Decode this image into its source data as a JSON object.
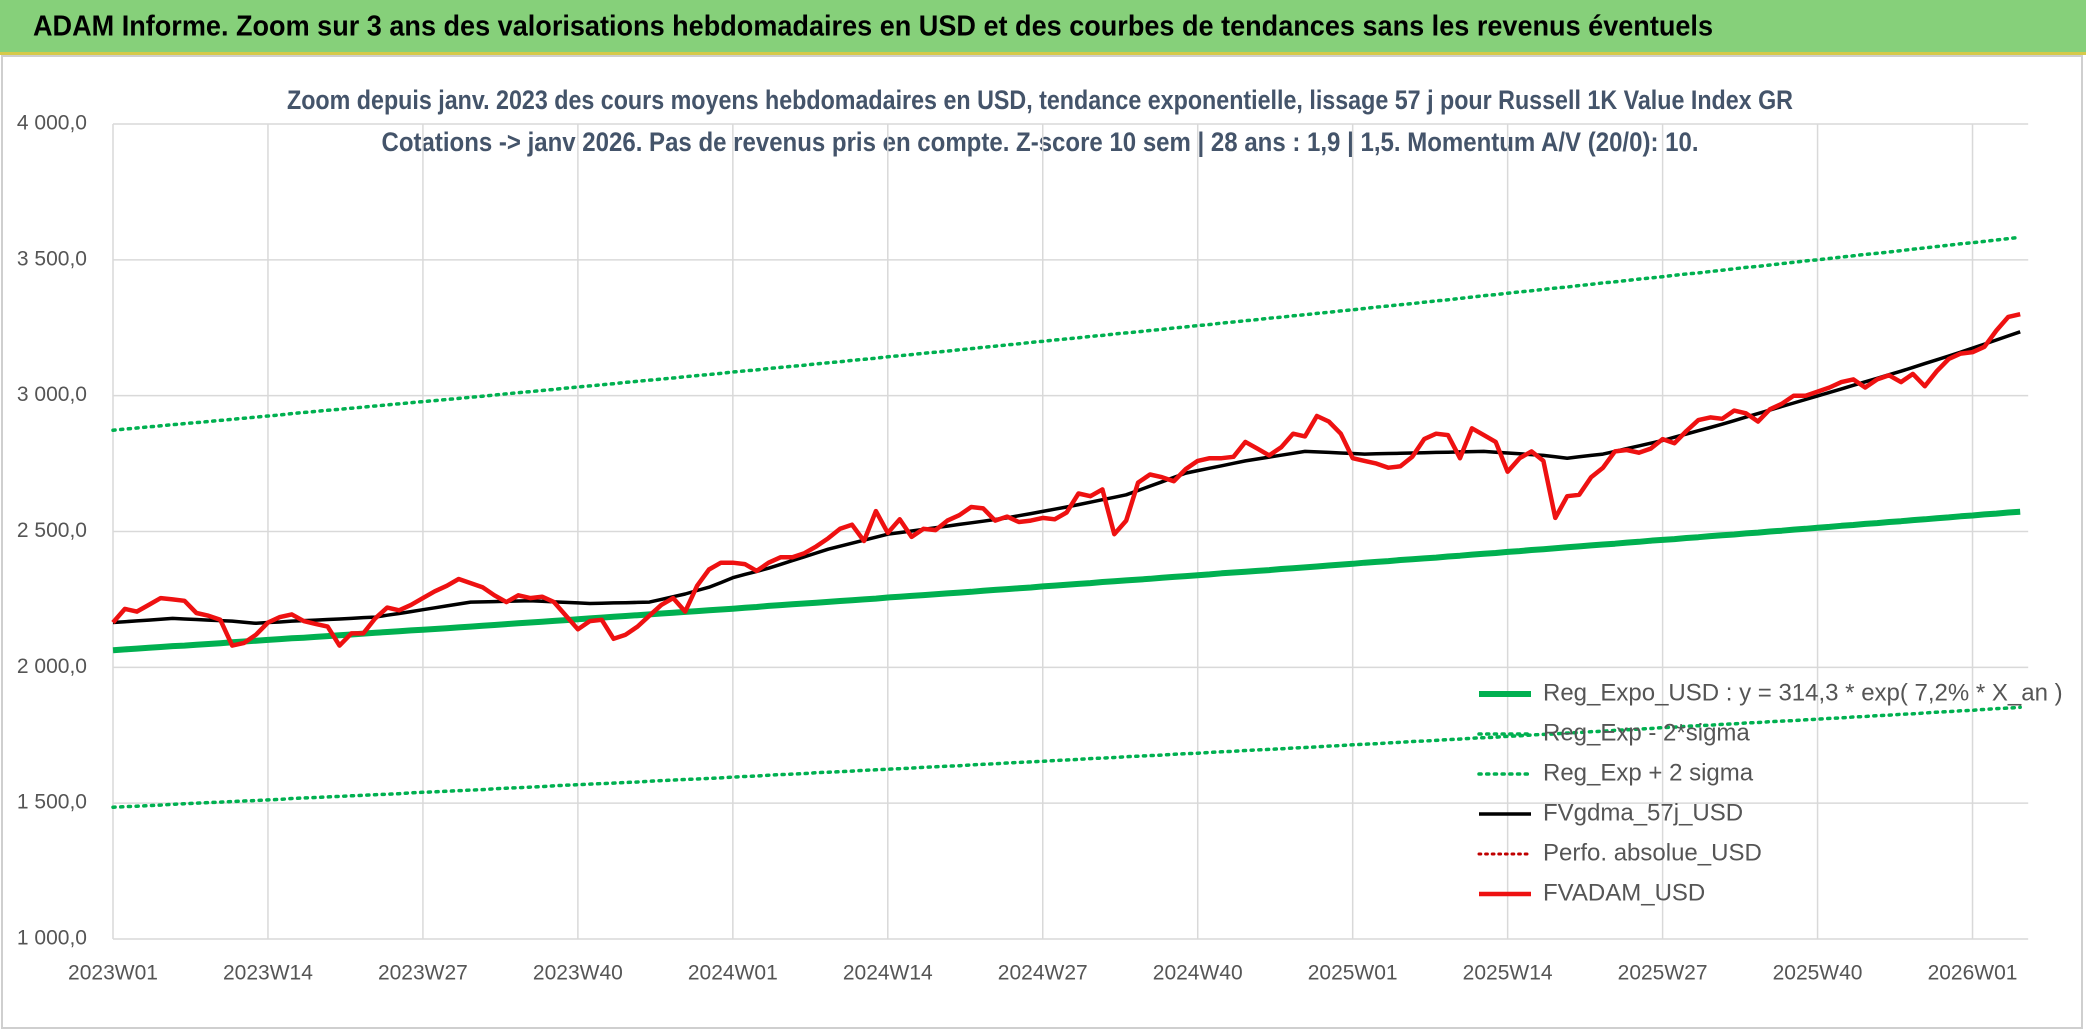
{
  "header": {
    "title": "ADAM Informe. Zoom sur 3 ans des valorisations hebdomadaires en USD et des courbes de tendances sans les revenus éventuels"
  },
  "chart_data": {
    "type": "line",
    "title": "Zoom depuis janv. 2023 des cours moyens hebdomadaires en USD, tendance exponentielle, lissage 57 j pour Russell 1K Value Index GR",
    "subtitle": "Cotations -> janv 2026. Pas de revenus pris en compte. Z-score 10 sem | 28 ans : 1,9 | 1,5. Momentum A/V (20/0): 10.",
    "categories": [
      "2023W01",
      null,
      null,
      null,
      null,
      null,
      null,
      null,
      null,
      null,
      null,
      null,
      null,
      "2023W14",
      null,
      null,
      null,
      null,
      null,
      null,
      null,
      null,
      null,
      null,
      null,
      null,
      "2023W27",
      null,
      null,
      null,
      null,
      null,
      null,
      null,
      null,
      null,
      null,
      null,
      null,
      "2023W40",
      null,
      null,
      null,
      null,
      null,
      null,
      null,
      null,
      null,
      null,
      null,
      null,
      "2024W01",
      null,
      null,
      null,
      null,
      null,
      null,
      null,
      null,
      null,
      null,
      null,
      null,
      "2024W14",
      null,
      null,
      null,
      null,
      null,
      null,
      null,
      null,
      null,
      null,
      null,
      null,
      "2024W27",
      null,
      null,
      null,
      null,
      null,
      null,
      null,
      null,
      null,
      null,
      null,
      null,
      "2024W40",
      null,
      null,
      null,
      null,
      null,
      null,
      null,
      null,
      null,
      null,
      null,
      null,
      "2025W01",
      null,
      null,
      null,
      null,
      null,
      null,
      null,
      null,
      null,
      null,
      null,
      null,
      "2025W14",
      null,
      null,
      null,
      null,
      null,
      null,
      null,
      null,
      null,
      null,
      null,
      null,
      "2025W27",
      null,
      null,
      null,
      null,
      null,
      null,
      null,
      null,
      null,
      null,
      null,
      null,
      "2025W40",
      null,
      null,
      null,
      null,
      null,
      null,
      null,
      null,
      null,
      null,
      null,
      null,
      "2026W01",
      null,
      null,
      null,
      null
    ],
    "ylim": [
      1000,
      4000
    ],
    "yticks": [
      {
        "value": 1000,
        "label": "1 000,0"
      },
      {
        "value": 1500,
        "label": "1 500,0"
      },
      {
        "value": 2000,
        "label": "2 000,0"
      },
      {
        "value": 2500,
        "label": "2 500,0"
      },
      {
        "value": 3000,
        "label": "3 000,0"
      },
      {
        "value": 3500,
        "label": "3 500,0"
      },
      {
        "value": 4000,
        "label": "4 000,0"
      }
    ],
    "grid": true,
    "legend": "lower-right",
    "series": [
      {
        "name": "Reg_Expo_USD : y = 314,3 * exp( 7,2% *  X_an )",
        "color": "#00b050",
        "width": 6,
        "dash": "solid",
        "values": [
          2063,
          2066,
          2069,
          2072,
          2075,
          2078,
          2080,
          2083,
          2086,
          2089,
          2092,
          2095,
          2098,
          2101,
          2104,
          2107,
          2109,
          2112,
          2115,
          2118,
          2121,
          2124,
          2127,
          2130,
          2133,
          2136,
          2138,
          2141,
          2144,
          2147,
          2150,
          2153,
          2156,
          2159,
          2162,
          2165,
          2168,
          2171,
          2174,
          2177,
          2180,
          2183,
          2186,
          2189,
          2192,
          2195,
          2198,
          2201,
          2204,
          2207,
          2210,
          2213,
          2216,
          2219,
          2222,
          2226,
          2229,
          2232,
          2235,
          2238,
          2241,
          2244,
          2247,
          2250,
          2253,
          2257,
          2260,
          2263,
          2266,
          2269,
          2272,
          2275,
          2278,
          2282,
          2285,
          2288,
          2291,
          2294,
          2298,
          2301,
          2304,
          2307,
          2310,
          2314,
          2317,
          2320,
          2323,
          2326,
          2330,
          2333,
          2336,
          2339,
          2342,
          2346,
          2349,
          2352,
          2355,
          2358,
          2362,
          2365,
          2368,
          2371,
          2375,
          2378,
          2381,
          2385,
          2388,
          2391,
          2395,
          2398,
          2401,
          2404,
          2408,
          2411,
          2415,
          2418,
          2421,
          2425,
          2428,
          2432,
          2435,
          2438,
          2442,
          2445,
          2449,
          2452,
          2455,
          2459,
          2462,
          2466,
          2469,
          2472,
          2476,
          2479,
          2483,
          2486,
          2489,
          2493,
          2496,
          2500,
          2503,
          2507,
          2510,
          2514,
          2517,
          2521,
          2524,
          2528,
          2531,
          2535,
          2538,
          2542,
          2545,
          2549,
          2552,
          2556,
          2559,
          2563,
          2566,
          2570,
          2573
        ]
      },
      {
        "name": "Reg_Exp - 2*sigma",
        "color": "#00b050",
        "width": 3.5,
        "dash": "dotted",
        "values": [
          1485,
          1487,
          1489,
          1491,
          1493,
          1496,
          1498,
          1500,
          1502,
          1504,
          1506,
          1508,
          1510,
          1512,
          1514,
          1517,
          1519,
          1521,
          1523,
          1525,
          1527,
          1529,
          1531,
          1533,
          1535,
          1538,
          1540,
          1542,
          1544,
          1546,
          1548,
          1550,
          1553,
          1555,
          1557,
          1559,
          1561,
          1564,
          1566,
          1568,
          1570,
          1572,
          1574,
          1576,
          1578,
          1581,
          1583,
          1585,
          1587,
          1589,
          1591,
          1593,
          1596,
          1598,
          1600,
          1603,
          1605,
          1607,
          1609,
          1612,
          1614,
          1616,
          1618,
          1621,
          1623,
          1625,
          1627,
          1629,
          1632,
          1634,
          1636,
          1638,
          1641,
          1643,
          1645,
          1648,
          1650,
          1652,
          1654,
          1657,
          1659,
          1661,
          1664,
          1666,
          1668,
          1671,
          1673,
          1675,
          1677,
          1680,
          1682,
          1684,
          1687,
          1689,
          1691,
          1694,
          1696,
          1698,
          1700,
          1703,
          1705,
          1707,
          1710,
          1712,
          1715,
          1717,
          1719,
          1722,
          1724,
          1727,
          1729,
          1731,
          1734,
          1736,
          1739,
          1741,
          1743,
          1746,
          1748,
          1751,
          1753,
          1755,
          1758,
          1760,
          1763,
          1765,
          1768,
          1770,
          1773,
          1775,
          1778,
          1780,
          1783,
          1785,
          1787,
          1790,
          1792,
          1795,
          1797,
          1800,
          1802,
          1804,
          1807,
          1809,
          1812,
          1814,
          1817,
          1819,
          1822,
          1824,
          1827,
          1829,
          1832,
          1835,
          1837,
          1840,
          1842,
          1845,
          1848,
          1850,
          1853
        ]
      },
      {
        "name": "Reg_Exp + 2 sigma",
        "color": "#00b050",
        "width": 3.5,
        "dash": "dotted",
        "values": [
          2873,
          2877,
          2881,
          2885,
          2889,
          2893,
          2897,
          2901,
          2905,
          2909,
          2913,
          2917,
          2921,
          2925,
          2929,
          2934,
          2938,
          2942,
          2946,
          2950,
          2954,
          2958,
          2962,
          2966,
          2970,
          2974,
          2978,
          2982,
          2986,
          2990,
          2994,
          2998,
          3002,
          3007,
          3011,
          3015,
          3019,
          3023,
          3028,
          3032,
          3036,
          3040,
          3044,
          3049,
          3053,
          3057,
          3061,
          3065,
          3070,
          3074,
          3078,
          3082,
          3087,
          3091,
          3095,
          3100,
          3104,
          3108,
          3112,
          3117,
          3121,
          3125,
          3130,
          3134,
          3138,
          3143,
          3147,
          3151,
          3156,
          3160,
          3164,
          3169,
          3173,
          3178,
          3182,
          3187,
          3191,
          3196,
          3200,
          3205,
          3209,
          3213,
          3218,
          3222,
          3227,
          3231,
          3235,
          3240,
          3244,
          3249,
          3253,
          3258,
          3262,
          3267,
          3271,
          3276,
          3280,
          3285,
          3289,
          3294,
          3298,
          3303,
          3307,
          3312,
          3316,
          3321,
          3326,
          3330,
          3335,
          3339,
          3344,
          3349,
          3353,
          3358,
          3363,
          3368,
          3372,
          3377,
          3382,
          3386,
          3391,
          3396,
          3400,
          3405,
          3410,
          3415,
          3419,
          3424,
          3429,
          3433,
          3438,
          3443,
          3448,
          3452,
          3457,
          3462,
          3467,
          3472,
          3476,
          3481,
          3486,
          3491,
          3496,
          3500,
          3505,
          3510,
          3515,
          3520,
          3524,
          3529,
          3534,
          3539,
          3544,
          3549,
          3554,
          3559,
          3563,
          3568,
          3573,
          3578,
          3583
        ]
      },
      {
        "name": "FVgdma_57j_USD",
        "color": "#000000",
        "width": 3.5,
        "dash": "solid",
        "values": [
          2165,
          2168,
          2171,
          2174,
          2177,
          2180,
          2178,
          2176,
          2174,
          2172,
          2170,
          2166,
          2162,
          2165,
          2167,
          2170,
          2172,
          2174,
          2176,
          2178,
          2180,
          2183,
          2185,
          2192,
          2198,
          2205,
          2212,
          2219,
          2226,
          2233,
          2240,
          2241,
          2242,
          2243,
          2244,
          2245,
          2243,
          2241,
          2239,
          2237,
          2235,
          2236,
          2237,
          2238,
          2239,
          2240,
          2250,
          2260,
          2270,
          2283,
          2295,
          2312,
          2330,
          2342,
          2353,
          2365,
          2379,
          2393,
          2407,
          2421,
          2435,
          2446,
          2457,
          2468,
          2479,
          2490,
          2496,
          2502,
          2508,
          2514,
          2520,
          2526,
          2532,
          2538,
          2544,
          2550,
          2558,
          2566,
          2574,
          2582,
          2590,
          2599,
          2608,
          2617,
          2626,
          2635,
          2651,
          2667,
          2683,
          2699,
          2715,
          2724,
          2733,
          2742,
          2751,
          2760,
          2767,
          2774,
          2781,
          2788,
          2795,
          2793,
          2791,
          2789,
          2787,
          2785,
          2786,
          2787,
          2788,
          2789,
          2790,
          2791,
          2792,
          2793,
          2794,
          2795,
          2792,
          2789,
          2786,
          2783,
          2780,
          2775,
          2770,
          2775,
          2780,
          2785,
          2795,
          2805,
          2815,
          2825,
          2835,
          2847,
          2859,
          2871,
          2883,
          2895,
          2908,
          2921,
          2934,
          2947,
          2960,
          2973,
          2986,
          2999,
          3012,
          3025,
          3038,
          3051,
          3064,
          3077,
          3090,
          3104,
          3118,
          3132,
          3146,
          3160,
          3175,
          3190,
          3205,
          3220,
          3235
        ]
      },
      {
        "name": "Perfo. absolue_USD",
        "color": "#c00000",
        "width": 3,
        "dash": "dotted",
        "values": [
          null,
          null,
          null,
          null,
          null,
          null,
          null,
          null,
          null,
          null,
          null,
          null,
          null,
          null,
          null,
          null,
          null,
          null,
          null,
          null,
          null,
          null,
          null,
          null,
          null,
          null,
          null,
          null,
          null,
          null,
          null,
          null,
          null,
          null,
          null,
          null,
          null,
          null,
          null,
          null,
          null,
          null,
          null,
          null,
          null,
          null,
          null,
          null,
          null,
          null,
          null,
          null,
          null,
          null,
          null,
          null,
          null,
          null,
          null,
          null,
          null,
          null,
          null,
          null,
          null,
          null,
          null,
          null,
          null,
          null,
          null,
          null,
          null,
          null,
          null,
          null,
          null,
          null,
          null,
          null,
          null,
          null,
          null,
          null,
          null,
          null,
          null,
          null,
          null,
          null,
          null,
          null,
          null,
          null,
          null,
          null,
          null,
          null,
          null,
          null,
          null,
          null,
          null,
          null,
          null,
          null,
          null,
          null,
          null,
          null,
          null,
          null,
          null,
          null,
          null,
          null,
          null,
          null,
          null,
          null,
          null,
          null,
          null,
          null,
          null,
          null,
          null,
          null,
          null,
          null,
          null,
          null,
          null,
          null,
          null,
          null,
          null,
          null,
          null,
          null,
          null,
          null,
          null,
          null,
          null,
          null,
          null,
          null,
          null,
          null,
          null,
          null,
          null,
          null,
          null,
          null,
          null,
          null,
          null,
          null,
          null
        ]
      },
      {
        "name": "FVADAM_USD",
        "color": "#ee1111",
        "width": 4.5,
        "dash": "solid",
        "values": [
          2165,
          2215,
          2205,
          2230,
          2255,
          2250,
          2245,
          2200,
          2190,
          2175,
          2080,
          2090,
          2120,
          2165,
          2185,
          2195,
          2170,
          2160,
          2150,
          2080,
          2125,
          2125,
          2180,
          2220,
          2210,
          2230,
          2255,
          2280,
          2300,
          2325,
          2310,
          2295,
          2265,
          2240,
          2265,
          2255,
          2260,
          2240,
          2190,
          2140,
          2170,
          2175,
          2105,
          2120,
          2150,
          2190,
          2230,
          2255,
          2205,
          2300,
          2360,
          2385,
          2385,
          2380,
          2355,
          2385,
          2405,
          2405,
          2420,
          2445,
          2475,
          2510,
          2525,
          2465,
          2575,
          2495,
          2545,
          2480,
          2510,
          2505,
          2540,
          2560,
          2590,
          2585,
          2540,
          2555,
          2535,
          2540,
          2550,
          2545,
          2570,
          2640,
          2630,
          2655,
          2490,
          2540,
          2680,
          2710,
          2700,
          2685,
          2730,
          2760,
          2770,
          2770,
          2775,
          2830,
          2805,
          2780,
          2810,
          2860,
          2850,
          2925,
          2905,
          2860,
          2770,
          2760,
          2750,
          2735,
          2740,
          2775,
          2840,
          2860,
          2855,
          2770,
          2880,
          2855,
          2830,
          2720,
          2770,
          2795,
          2760,
          2550,
          2630,
          2635,
          2700,
          2735,
          2795,
          2800,
          2790,
          2805,
          2840,
          2825,
          2870,
          2910,
          2920,
          2915,
          2945,
          2935,
          2905,
          2950,
          2970,
          3000,
          3000,
          3015,
          3030,
          3050,
          3060,
          3030,
          3060,
          3075,
          3050,
          3080,
          3035,
          3090,
          3135,
          3155,
          3160,
          3180,
          3240,
          3290,
          3300
        ]
      }
    ]
  }
}
